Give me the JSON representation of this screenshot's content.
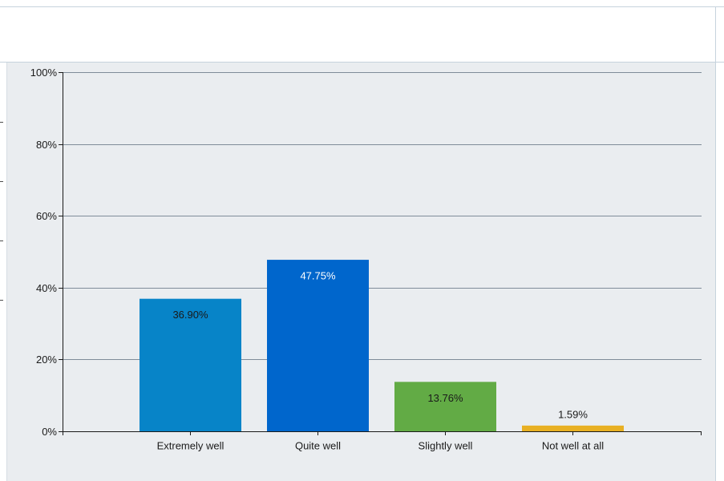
{
  "chart_data": {
    "type": "bar",
    "title": "",
    "xlabel": "",
    "ylabel": "",
    "categories": [
      "Extremely well",
      "Quite well",
      "Slightly well",
      "Not well at all"
    ],
    "values": [
      36.9,
      47.75,
      13.76,
      1.59
    ],
    "value_labels": [
      "36.90%",
      "47.75%",
      "13.76%",
      "1.59%"
    ],
    "ylim": [
      0,
      100
    ],
    "y_ticks": [
      0,
      20,
      40,
      60,
      80,
      100
    ],
    "y_tick_labels": [
      "0%",
      "20%",
      "40%",
      "60%",
      "80%",
      "100%"
    ],
    "bar_colors": [
      "#0784c8",
      "#0066cc",
      "#62ab45",
      "#e8b023"
    ],
    "label_colors": [
      "#1a1a1a",
      "#ffffff",
      "#1a1a1a",
      "#1a1a1a"
    ],
    "grid": true,
    "legend": "none"
  },
  "colors": {
    "plot_background": "#eaedf0",
    "gridline": "#7f8c99",
    "axis": "#1a1a1a"
  }
}
